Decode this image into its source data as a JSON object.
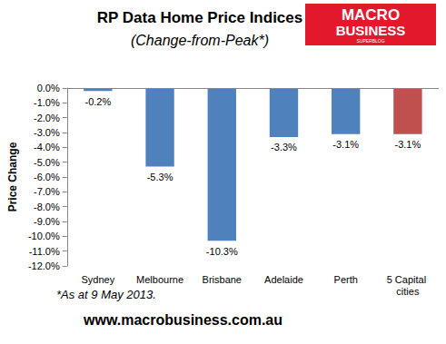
{
  "chart_data": {
    "type": "bar",
    "title": "RP Data Home Price Indices",
    "subtitle": "(Change-from-Peak*)",
    "y_label": "Price Change",
    "categories": [
      "Sydney",
      "Melbourne",
      "Brisbane",
      "Adelaide",
      "Perth",
      "5 Capital cities"
    ],
    "values": [
      -0.2,
      -5.3,
      -10.3,
      -3.3,
      -3.1,
      -3.1
    ],
    "value_labels": [
      "-0.2%",
      "-5.3%",
      "-10.3%",
      "-3.3%",
      "-3.1%",
      "-3.1%"
    ],
    "colors": [
      "#4f81bd",
      "#4f81bd",
      "#4f81bd",
      "#4f81bd",
      "#4f81bd",
      "#c0504d"
    ],
    "data_labels": true,
    "grid": false,
    "ylim": [
      -12,
      0
    ],
    "yticks": [
      {
        "value": -12,
        "label": "-12.0%"
      },
      {
        "value": -11,
        "label": "-11.0%"
      },
      {
        "value": -10,
        "label": "-10.0%"
      },
      {
        "value": -9,
        "label": "-9.0%"
      },
      {
        "value": -8,
        "label": "-8.0%"
      },
      {
        "value": -7,
        "label": "-7.0%"
      },
      {
        "value": -6,
        "label": "-6.0%"
      },
      {
        "value": -5,
        "label": "-5.0%"
      },
      {
        "value": -4,
        "label": "-4.0%"
      },
      {
        "value": -3,
        "label": "-3.0%"
      },
      {
        "value": -2,
        "label": "-2.0%"
      },
      {
        "value": -1,
        "label": "-1.0%"
      },
      {
        "value": 0,
        "label": "0.0%"
      }
    ],
    "annotations": [
      "*As at 9 May 2013.",
      "www.macrobusiness.com.au"
    ],
    "logo": [
      "MACRO",
      "BUSINESS",
      "SUPERBLOG"
    ]
  }
}
